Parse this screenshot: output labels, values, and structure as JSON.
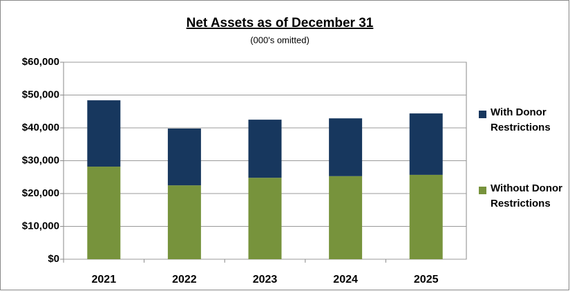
{
  "chart_data": {
    "type": "bar",
    "stacked": true,
    "title": "Net Assets as of December 31",
    "subtitle": "(000's omitted)",
    "categories": [
      "2021",
      "2022",
      "2023",
      "2024",
      "2025"
    ],
    "series": [
      {
        "name": "Without Donor Restrictions",
        "color": "#77933c",
        "values": [
          28200,
          22500,
          24800,
          25300,
          25700
        ]
      },
      {
        "name": "With Donor Restrictions",
        "color": "#17375e",
        "values": [
          20200,
          17300,
          17700,
          17600,
          18700
        ]
      }
    ],
    "ylim": [
      0,
      60000
    ],
    "yticks": [
      {
        "value": 0,
        "label": "$0"
      },
      {
        "value": 10000,
        "label": "$10,000"
      },
      {
        "value": 20000,
        "label": "$20,000"
      },
      {
        "value": 30000,
        "label": "$30,000"
      },
      {
        "value": 40000,
        "label": "$40,000"
      },
      {
        "value": 50000,
        "label": "$50,000"
      },
      {
        "value": 60000,
        "label": "$60,000"
      }
    ],
    "grid": true,
    "legend": "right"
  }
}
